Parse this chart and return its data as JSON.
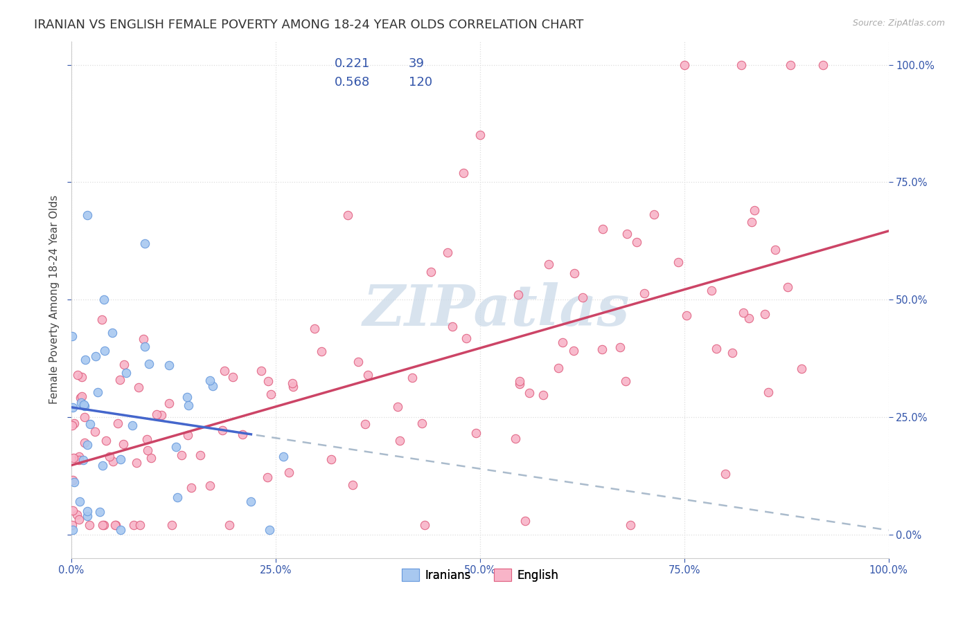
{
  "title": "IRANIAN VS ENGLISH FEMALE POVERTY AMONG 18-24 YEAR OLDS CORRELATION CHART",
  "source": "Source: ZipAtlas.com",
  "ylabel": "Female Poverty Among 18-24 Year Olds",
  "xlabel_ticks": [
    "0.0%",
    "25.0%",
    "50.0%",
    "75.0%",
    "100.0%"
  ],
  "ylabel_ticks": [
    "0.0%",
    "25.0%",
    "50.0%",
    "75.0%",
    "100.0%"
  ],
  "xlim": [
    0,
    1
  ],
  "ylim": [
    -0.05,
    1.05
  ],
  "iranians_color": "#A8C8F0",
  "iranians_edge_color": "#6699DD",
  "english_color": "#F8B4C8",
  "english_edge_color": "#E06080",
  "iranians_R": 0.221,
  "iranians_N": 39,
  "english_R": 0.568,
  "english_N": 120,
  "trendline_iranians_color": "#4466CC",
  "trendline_english_color": "#CC4466",
  "trendline_dashed_color": "#AABBCC",
  "watermark_text": "ZIPatlas",
  "watermark_color": "#C8D8E8",
  "background_color": "#FFFFFF",
  "title_fontsize": 13,
  "axis_label_fontsize": 11,
  "tick_fontsize": 10.5,
  "tick_color": "#3355AA",
  "legend_text_color": "#000000",
  "legend_num_color": "#3355AA"
}
